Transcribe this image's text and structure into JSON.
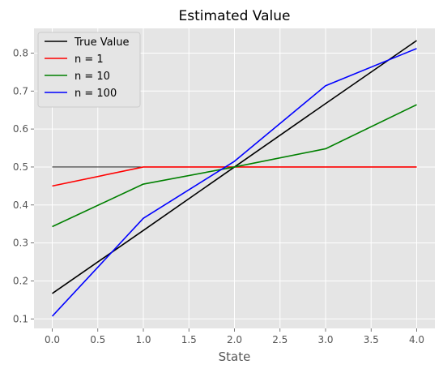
{
  "chart_data": {
    "type": "line",
    "title": "Estimated Value",
    "xlabel": "State",
    "ylabel": "",
    "xlim": [
      -0.2,
      4.2
    ],
    "ylim": [
      0.075,
      0.865
    ],
    "xticks": [
      0.0,
      0.5,
      1.0,
      1.5,
      2.0,
      2.5,
      3.0,
      3.5,
      4.0
    ],
    "xtick_labels": [
      "0.0",
      "0.5",
      "1.0",
      "1.5",
      "2.0",
      "2.5",
      "3.0",
      "3.5",
      "4.0"
    ],
    "yticks": [
      0.1,
      0.2,
      0.3,
      0.4,
      0.5,
      0.6,
      0.7,
      0.8
    ],
    "ytick_labels": [
      "0.1",
      "0.2",
      "0.3",
      "0.4",
      "0.5",
      "0.6",
      "0.7",
      "0.8"
    ],
    "grid": true,
    "legend_position": "top-left",
    "background_color": "#e5e5e5",
    "grid_color": "#ffffff",
    "x": [
      0,
      1,
      2,
      3,
      4
    ],
    "series": [
      {
        "name": "True Value",
        "color": "#000000",
        "values": [
          0.167,
          0.333,
          0.5,
          0.667,
          0.833
        ]
      },
      {
        "name": "n = 1",
        "color": "#ff0000",
        "values": [
          0.45,
          0.5,
          0.5,
          0.5,
          0.5
        ]
      },
      {
        "name": "n = 10",
        "color": "#008000",
        "values": [
          0.343,
          0.455,
          0.5,
          0.548,
          0.664
        ]
      },
      {
        "name": "n = 100",
        "color": "#0000ff",
        "values": [
          0.107,
          0.365,
          0.515,
          0.714,
          0.812
        ]
      }
    ],
    "reference_line": {
      "x": [
        0,
        1
      ],
      "y": 0.5,
      "color": "#000000"
    }
  }
}
